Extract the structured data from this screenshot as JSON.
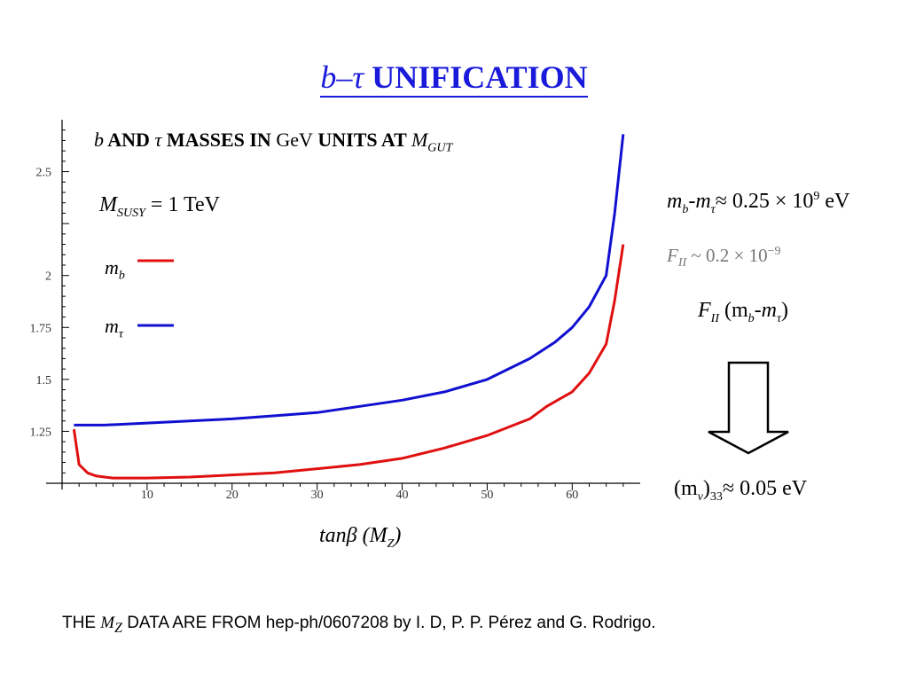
{
  "slide": {
    "title_prefix": "b–τ",
    "title_main": "UNIFICATION",
    "chart_heading": {
      "part1": "b",
      "part2": " AND ",
      "part3": "τ",
      "part4": " MASSES IN ",
      "part5": "GeV",
      "part6": " UNITS AT ",
      "part7": "M",
      "part7_sub": "GUT"
    },
    "msusy": {
      "symbol": "M",
      "sub": "SUSY",
      "value": " = 1 TeV"
    },
    "equations": {
      "eq1_a": "m",
      "eq1_a_sub": "b",
      "eq1_b": "-m",
      "eq1_b_sub": "τ",
      "eq1_c": "≈ 0.25 × 10",
      "eq1_exp": "9",
      "eq1_d": " eV",
      "eq2_a": "F",
      "eq2_a_sub": "II",
      "eq2_b": " ~ 0.2 × 10",
      "eq2_exp": "−9",
      "eq3_a": "F",
      "eq3_a_sub": "II",
      "eq3_b": " (m",
      "eq3_b_sub": "b",
      "eq3_c": "-m",
      "eq3_c_sub": "τ",
      "eq3_d": ")",
      "eq4_a": "(m",
      "eq4_a_sub": "ν",
      "eq4_b": ")",
      "eq4_b_sub": "33",
      "eq4_c": "≈ 0.05 eV"
    },
    "x_label": {
      "main": "tanβ (M",
      "sub": "Z",
      "end": ")"
    },
    "footer": {
      "a": "THE ",
      "b": "M",
      "b_sub": "Z",
      "c": " DATA ARE FROM hep-ph/0607208 by I. D, P. P. Pérez and G. Rodrigo."
    }
  },
  "colors": {
    "title": "#1a1adb",
    "m_b": "#e01010",
    "m_tau": "#1010d0",
    "arrow": "#000000"
  },
  "icons": {
    "down_arrow": "down-arrow-icon"
  },
  "chart_data": {
    "type": "line",
    "xlim": [
      0,
      68
    ],
    "ylim": [
      1.0,
      2.75
    ],
    "x_ticks": [
      10,
      20,
      30,
      40,
      50,
      60
    ],
    "y_ticks": [
      1.25,
      1.5,
      1.75,
      2,
      2.5
    ],
    "y_tick_labels": [
      "1.25",
      "1.5",
      "1.75",
      "2",
      "2.5"
    ],
    "x_tick_labels": [
      "10",
      "20",
      "30",
      "40",
      "50",
      "60"
    ],
    "grid": false,
    "legend_position": "upper-left",
    "series": [
      {
        "name": "m_b",
        "legend_main": "m",
        "legend_sub": "b",
        "color": "#e01010",
        "x": [
          1.4,
          2,
          3,
          4,
          5,
          6,
          8,
          10,
          15,
          20,
          25,
          30,
          35,
          40,
          45,
          50,
          55,
          57,
          60,
          62,
          64,
          65,
          66
        ],
        "y": [
          1.26,
          1.09,
          1.05,
          1.035,
          1.03,
          1.025,
          1.025,
          1.025,
          1.03,
          1.04,
          1.05,
          1.07,
          1.09,
          1.12,
          1.17,
          1.23,
          1.31,
          1.37,
          1.44,
          1.53,
          1.67,
          1.88,
          2.15
        ]
      },
      {
        "name": "m_tau",
        "legend_main": "m",
        "legend_sub": "τ",
        "color": "#1010d0",
        "x": [
          1.4,
          5,
          10,
          15,
          20,
          25,
          30,
          35,
          40,
          45,
          50,
          55,
          58,
          60,
          62,
          64,
          65,
          66
        ],
        "y": [
          1.28,
          1.28,
          1.29,
          1.3,
          1.31,
          1.325,
          1.34,
          1.37,
          1.4,
          1.44,
          1.5,
          1.6,
          1.68,
          1.75,
          1.85,
          2.0,
          2.3,
          2.68
        ]
      }
    ]
  }
}
